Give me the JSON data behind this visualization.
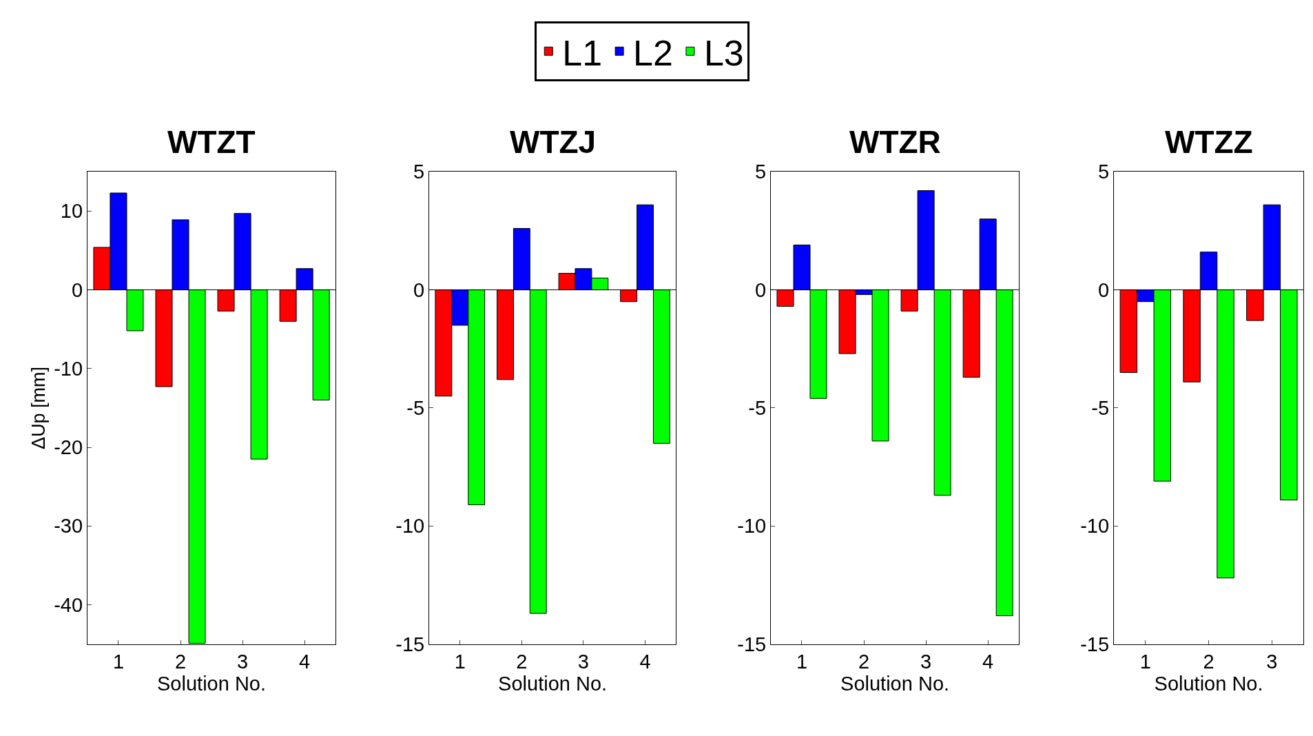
{
  "chart_data": [
    {
      "type": "bar",
      "title": "WTZT",
      "xlabel": "Solution No.",
      "ylabel": "ΔUp [mm]",
      "categories": [
        "1",
        "2",
        "3",
        "4"
      ],
      "ylim": [
        -45,
        15
      ],
      "yticks": [
        -40,
        -30,
        -20,
        -10,
        0,
        10
      ],
      "legend": "top",
      "ref_lines": [
        {
          "axis": "y",
          "value": 0,
          "color": "#000000"
        }
      ],
      "series": [
        {
          "name": "L1",
          "color": "#ff0000",
          "values": [
            5.4,
            -12.3,
            -2.7,
            -4.0
          ]
        },
        {
          "name": "L2",
          "color": "#0000ff",
          "values": [
            12.3,
            8.9,
            9.7,
            2.7
          ]
        },
        {
          "name": "L3",
          "color": "#00ff00",
          "values": [
            -5.2,
            -44.9,
            -21.5,
            -14.0
          ]
        }
      ]
    },
    {
      "type": "bar",
      "title": "WTZJ",
      "xlabel": "Solution No.",
      "categories": [
        "1",
        "2",
        "3",
        "4"
      ],
      "ylim": [
        -15,
        5
      ],
      "yticks": [
        -15,
        -10,
        -5,
        0,
        5
      ],
      "ref_lines": [
        {
          "axis": "y",
          "value": 0,
          "color": "#000000"
        }
      ],
      "series": [
        {
          "name": "L1",
          "color": "#ff0000",
          "values": [
            -4.5,
            -3.8,
            0.7,
            -0.5
          ]
        },
        {
          "name": "L2",
          "color": "#0000ff",
          "values": [
            -1.5,
            2.6,
            0.9,
            3.6
          ]
        },
        {
          "name": "L3",
          "color": "#00ff00",
          "values": [
            -9.1,
            -13.7,
            0.5,
            -6.5
          ]
        }
      ]
    },
    {
      "type": "bar",
      "title": "WTZR",
      "xlabel": "Solution No.",
      "categories": [
        "1",
        "2",
        "3",
        "4"
      ],
      "ylim": [
        -15,
        5
      ],
      "yticks": [
        -15,
        -10,
        -5,
        0,
        5
      ],
      "ref_lines": [
        {
          "axis": "y",
          "value": 0,
          "color": "#000000"
        }
      ],
      "series": [
        {
          "name": "L1",
          "color": "#ff0000",
          "values": [
            -0.7,
            -2.7,
            -0.9,
            -3.7
          ]
        },
        {
          "name": "L2",
          "color": "#0000ff",
          "values": [
            1.9,
            -0.2,
            4.2,
            3.0
          ]
        },
        {
          "name": "L3",
          "color": "#00ff00",
          "values": [
            -4.6,
            -6.4,
            -8.7,
            -13.8
          ]
        }
      ]
    },
    {
      "type": "bar",
      "title": "WTZZ",
      "xlabel": "Solution No.",
      "categories": [
        "1",
        "2",
        "3"
      ],
      "ylim": [
        -15,
        5
      ],
      "yticks": [
        -15,
        -10,
        -5,
        0,
        5
      ],
      "ref_lines": [
        {
          "axis": "y",
          "value": 0,
          "color": "#000000"
        }
      ],
      "series": [
        {
          "name": "L1",
          "color": "#ff0000",
          "values": [
            -3.5,
            -3.9,
            -1.3
          ]
        },
        {
          "name": "L2",
          "color": "#0000ff",
          "values": [
            -0.5,
            1.6,
            3.6
          ]
        },
        {
          "name": "L3",
          "color": "#00ff00",
          "values": [
            -8.1,
            -12.2,
            -8.9
          ]
        }
      ]
    }
  ]
}
